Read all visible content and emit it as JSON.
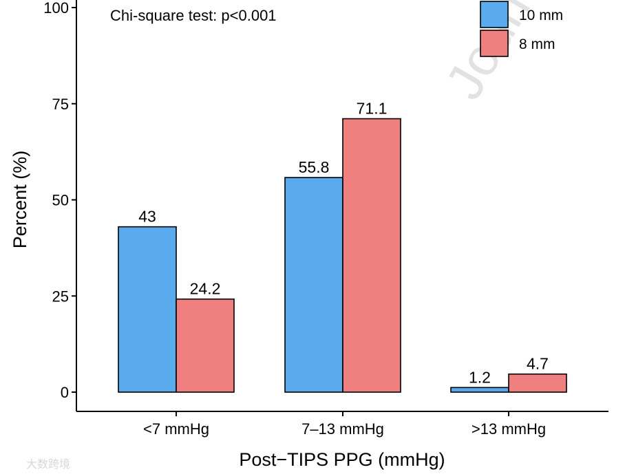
{
  "chart_data": {
    "type": "bar",
    "categories": [
      "<7 mmHg",
      "7–13 mmHg",
      ">13 mmHg"
    ],
    "series": [
      {
        "name": "10 mm",
        "values": [
          43,
          55.8,
          1.2
        ],
        "labels": [
          "43",
          "55.8",
          "1.2"
        ],
        "color": "#5aaaee"
      },
      {
        "name": "8 mm",
        "values": [
          24.2,
          71.1,
          4.7
        ],
        "labels": [
          "24.2",
          "71.1",
          "4.7"
        ],
        "color": "#f08080"
      }
    ],
    "xlabel": "Post−TIPS PPG (mmHg)",
    "ylabel": "Percent (%)",
    "ylim": [
      0,
      100
    ],
    "yticks": [
      0,
      25,
      50,
      75,
      100
    ],
    "annotation": "Chi-square test: p<0.001",
    "legend_position": "top-right",
    "grid": false
  },
  "watermark": "Journ",
  "corner_watermark": "大数跨境"
}
